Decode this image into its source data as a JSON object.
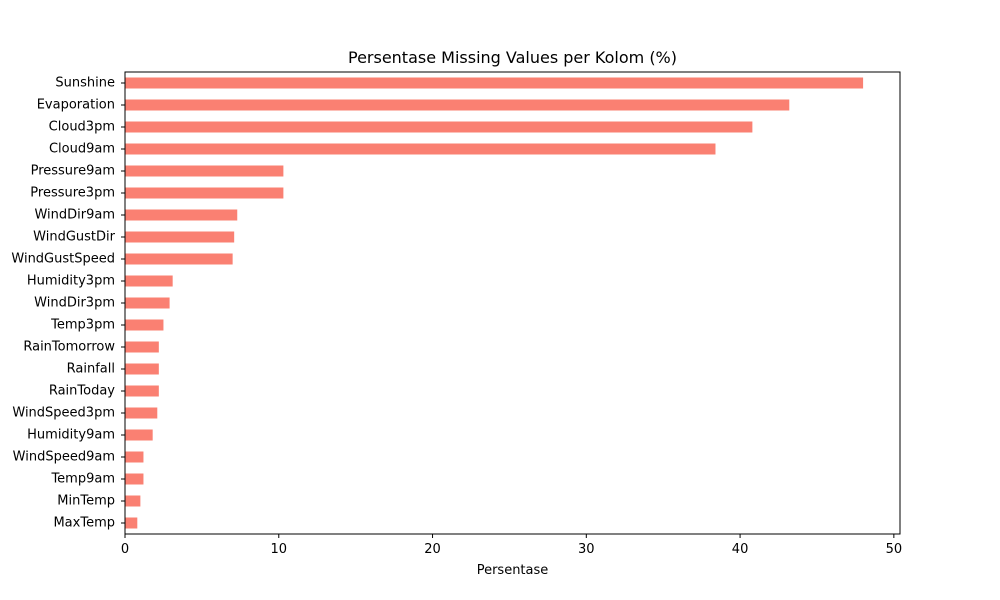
{
  "chart_data": {
    "type": "bar",
    "orientation": "horizontal",
    "title": "Persentase Missing Values per Kolom (%)",
    "xlabel": "Persentase",
    "ylabel": "",
    "xlim": [
      0,
      50.4
    ],
    "xticks": [
      0,
      10,
      20,
      30,
      40,
      50
    ],
    "grid": false,
    "bar_color": "#fa8072",
    "categories": [
      "Sunshine",
      "Evaporation",
      "Cloud3pm",
      "Cloud9am",
      "Pressure9am",
      "Pressure3pm",
      "WindDir9am",
      "WindGustDir",
      "WindGustSpeed",
      "Humidity3pm",
      "WindDir3pm",
      "Temp3pm",
      "RainTomorrow",
      "Rainfall",
      "RainToday",
      "WindSpeed3pm",
      "Humidity9am",
      "WindSpeed9am",
      "Temp9am",
      "MinTemp",
      "MaxTemp"
    ],
    "values": [
      48.0,
      43.2,
      40.8,
      38.4,
      10.3,
      10.3,
      7.3,
      7.1,
      7.0,
      3.1,
      2.9,
      2.5,
      2.2,
      2.2,
      2.2,
      2.1,
      1.8,
      1.2,
      1.2,
      1.0,
      0.8
    ]
  }
}
